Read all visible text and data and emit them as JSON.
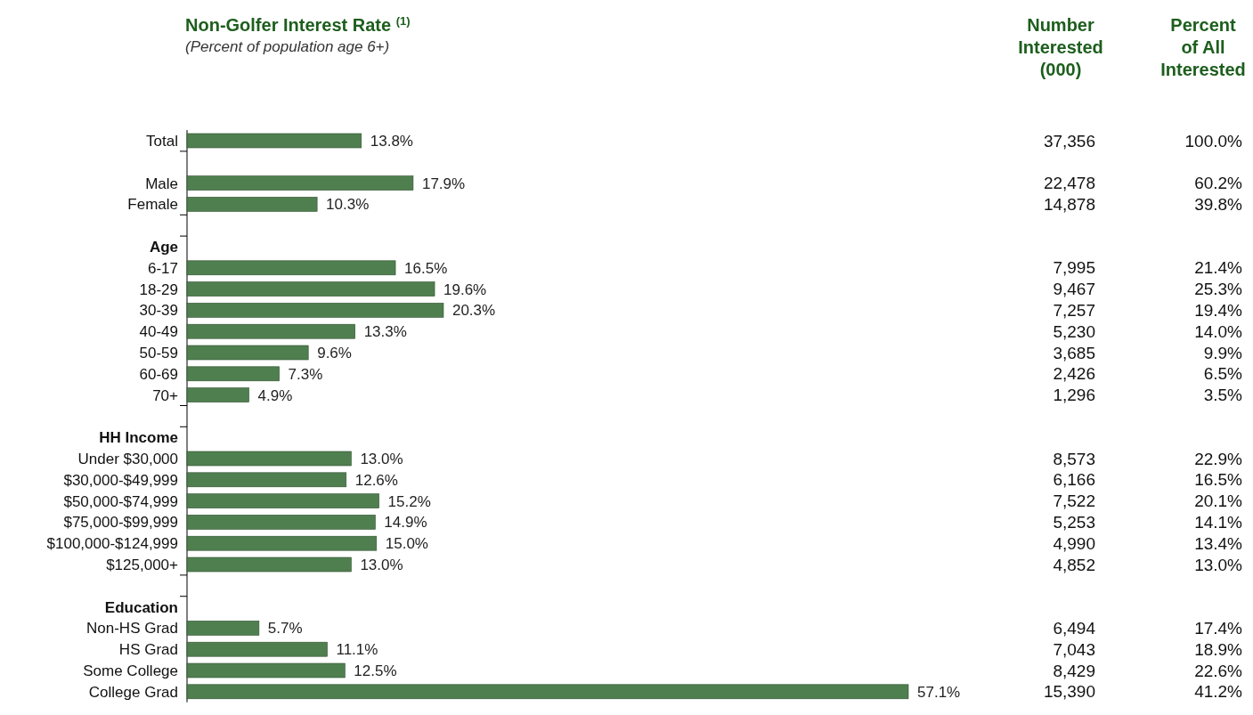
{
  "chart_data": {
    "type": "bar",
    "orientation": "horizontal",
    "title": "Non-Golfer Interest Rate $^{(1)}$",
    "subtitle": "(Percent of population age 6+)",
    "categories": [
      "Total",
      null,
      "Male",
      "Female",
      null,
      "Age",
      "6-17",
      "18-29",
      "30-39",
      "40-49",
      "50-59",
      "60-69",
      "70+",
      null,
      "HH Income",
      "Under $30,000",
      "$30,000-$49,999",
      "$50,000-$74,999",
      "$75,000-$99,999",
      "$100,000-$124,999",
      "$125,000+",
      null,
      "Education",
      "Non-HS Grad",
      "HS Grad",
      "Some College",
      "College Grad"
    ],
    "values": [
      13.8,
      null,
      17.9,
      10.3,
      null,
      null,
      16.5,
      19.6,
      20.3,
      13.3,
      9.6,
      7.3,
      4.9,
      null,
      null,
      13.0,
      12.6,
      15.2,
      14.9,
      15.0,
      13.0,
      null,
      null,
      5.7,
      11.1,
      12.5,
      57.1
    ],
    "value_labels": [
      "13.8%",
      null,
      "17.9%",
      "10.3%",
      null,
      null,
      "16.5%",
      "19.6%",
      "20.3%",
      "13.3%",
      "9.6%",
      "7.3%",
      "4.9%",
      null,
      null,
      "13.0%",
      "12.6%",
      "15.2%",
      "14.9%",
      "15.0%",
      "13.0%",
      null,
      null,
      "5.7%",
      "11.1%",
      "12.5%",
      "57.1%"
    ],
    "color": "#4f7f4f",
    "tick_labels": "y",
    "annotations": [
      "Number\nInterested\n(000)",
      "Percent\nof All\nInterested",
      "37,356",
      "100.0%",
      "22,478",
      "60.2%",
      "14,878",
      "39.8%",
      "7,995",
      "21.4%",
      "9,467",
      "25.3%",
      "7,257",
      "19.4%",
      "5,230",
      "14.0%",
      "3,685",
      "9.9%",
      "2,426",
      "6.5%",
      "1,296",
      "3.5%",
      "8,573",
      "22.9%",
      "6,166",
      "16.5%",
      "7,522",
      "20.1%",
      "5,253",
      "14.1%",
      "4,990",
      "13.4%",
      "4,852",
      "13.0%",
      "6,494",
      "17.4%",
      "7,043",
      "18.9%",
      "8,429",
      "22.6%",
      "15,390",
      "41.2%"
    ]
  }
}
